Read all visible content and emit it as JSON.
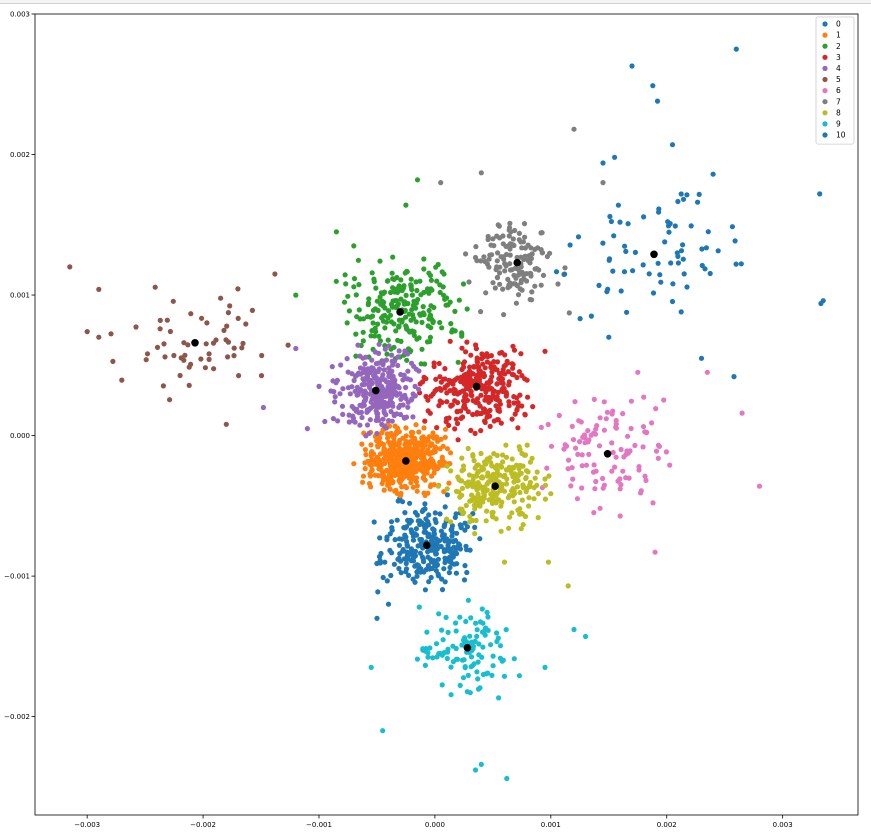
{
  "chart_data": {
    "type": "scatter",
    "title": "",
    "xlabel": "",
    "ylabel": "",
    "xlim": [
      -0.00345,
      0.00365
    ],
    "ylim": [
      -0.0027,
      0.003
    ],
    "x_ticks": [
      -0.003,
      -0.002,
      -0.001,
      0.0,
      0.001,
      0.002,
      0.003
    ],
    "x_tick_labels": [
      "−0.003",
      "−0.002",
      "−0.001",
      "0.000",
      "0.001",
      "0.002",
      "0.003"
    ],
    "y_ticks": [
      -0.002,
      -0.001,
      0.0,
      0.001,
      0.002,
      0.003
    ],
    "y_tick_labels": [
      "−0.002",
      "−0.001",
      "0.000",
      "0.001",
      "0.002",
      "0.003"
    ],
    "grid": false,
    "legend": {
      "placement": "top-right",
      "entries": [
        "0",
        "1",
        "2",
        "3",
        "4",
        "5",
        "6",
        "7",
        "8",
        "9",
        "10"
      ]
    },
    "centroid_color": "#000000",
    "centroids": [
      {
        "x": -7e-05,
        "y": -0.00078
      },
      {
        "x": -0.00025,
        "y": -0.00018
      },
      {
        "x": -0.0003,
        "y": 0.00088
      },
      {
        "x": 0.00036,
        "y": 0.00035
      },
      {
        "x": -0.00051,
        "y": 0.00032
      },
      {
        "x": -0.00207,
        "y": 0.00066
      },
      {
        "x": 0.00149,
        "y": -0.00013
      },
      {
        "x": 0.00071,
        "y": 0.00123
      },
      {
        "x": 0.00052,
        "y": -0.00036
      },
      {
        "x": 0.00028,
        "y": -0.00151
      },
      {
        "x": 0.00189,
        "y": 0.00129
      }
    ],
    "series": [
      {
        "name": "0",
        "color": "#1f77b4",
        "center": [
          -7e-05,
          -0.00078
        ],
        "spread": [
          0.00036,
          0.00028
        ],
        "n": 260,
        "points": [
          [
            -0.0004,
            -0.0012
          ],
          [
            -0.0005,
            -0.0013
          ]
        ]
      },
      {
        "name": "1",
        "color": "#ff7f0e",
        "center": [
          -0.00025,
          -0.00018
        ],
        "spread": [
          0.0003,
          0.0002
        ],
        "n": 480,
        "points": [
          [
            -0.0007,
            -0.0002
          ],
          [
            -0.0006,
            -0.0001
          ]
        ]
      },
      {
        "name": "2",
        "color": "#2ca02c",
        "center": [
          -0.0003,
          0.00088
        ],
        "spread": [
          0.00045,
          0.0003
        ],
        "n": 230,
        "points": [
          [
            -0.00015,
            0.00182
          ],
          [
            -0.00025,
            0.00164
          ],
          [
            -0.00085,
            0.00145
          ],
          [
            -0.0007,
            0.00135
          ],
          [
            -0.0012,
            0.001
          ]
        ]
      },
      {
        "name": "3",
        "color": "#d62728",
        "center": [
          0.00036,
          0.00035
        ],
        "spread": [
          0.00038,
          0.00026
        ],
        "n": 300,
        "points": [
          [
            0.0002,
            -3e-05
          ],
          [
            0.00095,
            0.0006
          ]
        ]
      },
      {
        "name": "4",
        "color": "#9467bd",
        "center": [
          -0.00051,
          0.00032
        ],
        "spread": [
          0.0003,
          0.00026
        ],
        "n": 300,
        "points": [
          [
            -0.0012,
            0.00062
          ],
          [
            -0.001,
            0.00035
          ],
          [
            -0.0011,
            5e-05
          ],
          [
            -0.00148,
            0.0002
          ],
          [
            -0.00095,
            0.0001
          ]
        ]
      },
      {
        "name": "5",
        "color": "#8c564b",
        "center": [
          -0.00207,
          0.00066
        ],
        "spread": [
          0.0007,
          0.00034
        ],
        "n": 60,
        "points": [
          [
            -0.00315,
            0.0012
          ],
          [
            -0.0029,
            0.00104
          ],
          [
            -0.003,
            0.00074
          ],
          [
            -0.0029,
            0.0007
          ],
          [
            -0.00138,
            0.00115
          ],
          [
            -0.0018,
            8e-05
          ]
        ]
      },
      {
        "name": "6",
        "color": "#e377c2",
        "center": [
          0.00149,
          -0.00013
        ],
        "spread": [
          0.00055,
          0.0004
        ],
        "n": 110,
        "points": [
          [
            0.0028,
            -0.00036
          ],
          [
            0.00265,
            0.00016
          ],
          [
            0.00235,
            0.00045
          ],
          [
            0.0019,
            -0.00083
          ],
          [
            0.00175,
            0.00045
          ]
        ]
      },
      {
        "name": "7",
        "color": "#7f7f7f",
        "center": [
          0.00071,
          0.00123
        ],
        "spread": [
          0.00035,
          0.0003
        ],
        "n": 140,
        "points": [
          [
            0.0012,
            0.00218
          ],
          [
            0.0004,
            0.00187
          ],
          [
            5e-05,
            0.0018
          ],
          [
            0.00145,
            0.0018
          ],
          [
            0.0005,
            0.0014
          ]
        ]
      },
      {
        "name": "8",
        "color": "#bcbd22",
        "center": [
          0.00052,
          -0.00036
        ],
        "spread": [
          0.00038,
          0.00026
        ],
        "n": 250,
        "points": [
          [
            0.00115,
            -0.00107
          ],
          [
            0.0006,
            -0.0009
          ],
          [
            0.00098,
            -0.0009
          ]
        ]
      },
      {
        "name": "9",
        "color": "#17becf",
        "center": [
          0.00028,
          -0.00151
        ],
        "spread": [
          0.00036,
          0.0003
        ],
        "n": 110,
        "points": [
          [
            0.00062,
            -0.00244
          ],
          [
            0.0004,
            -0.00234
          ],
          [
            0.00035,
            -0.00238
          ],
          [
            -0.00045,
            -0.0021
          ],
          [
            -0.00055,
            -0.00165
          ],
          [
            0.00095,
            -0.00165
          ],
          [
            0.0012,
            -0.00138
          ],
          [
            0.0013,
            -0.00143
          ]
        ]
      },
      {
        "name": "10",
        "color": "#1f77b4",
        "center": [
          0.00189,
          0.00129
        ],
        "spread": [
          0.0007,
          0.00045
        ],
        "n": 70,
        "points": [
          [
            0.0026,
            0.00275
          ],
          [
            0.0017,
            0.00263
          ],
          [
            0.00188,
            0.00249
          ],
          [
            0.00192,
            0.00238
          ],
          [
            0.00205,
            0.00207
          ],
          [
            0.00332,
            0.00172
          ],
          [
            0.00335,
            0.00096
          ],
          [
            0.00333,
            0.00094
          ],
          [
            0.00258,
            0.00042
          ],
          [
            0.0023,
            0.00055
          ],
          [
            0.0024,
            0.00186
          ],
          [
            0.00155,
            0.00198
          ],
          [
            0.00145,
            0.00194
          ],
          [
            0.0015,
            0.0007
          ],
          [
            0.00135,
            0.00085
          ]
        ]
      }
    ]
  }
}
